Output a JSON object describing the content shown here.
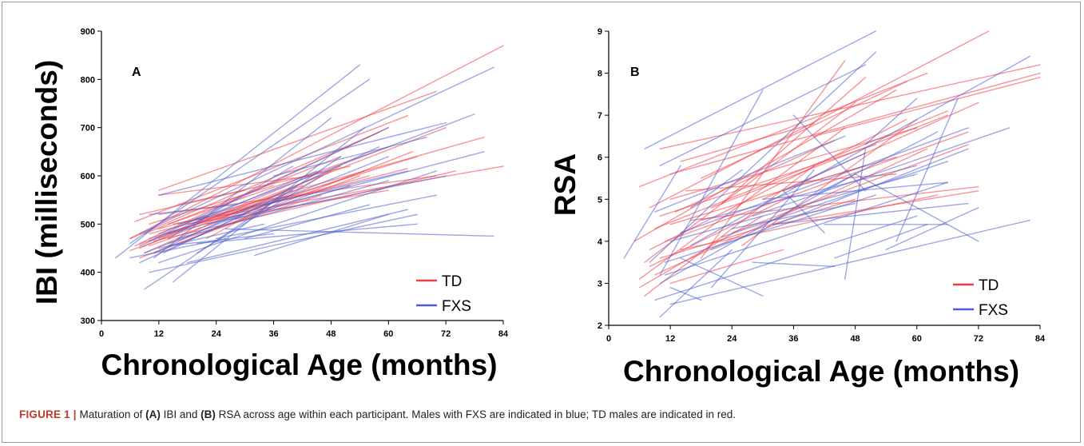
{
  "caption": {
    "label": "FIGURE 1 |",
    "t1": " Maturation of ",
    "a": "(A)",
    "t2": " IBI and ",
    "b": "(B)",
    "t3": " RSA across age within each participant. Males with FXS are indicated in blue; TD males are indicated in red."
  },
  "colors": {
    "TD": "#f03c46",
    "FXS": "#4d5fd0"
  },
  "chart_data": [
    {
      "type": "line",
      "panel_label": "A",
      "xlabel": "Chronological Age (months)",
      "ylabel": "IBI (milliseconds)",
      "xlim": [
        0,
        84
      ],
      "ylim": [
        300,
        900
      ],
      "xticks": [
        0,
        12,
        24,
        36,
        48,
        60,
        72,
        84
      ],
      "yticks": [
        300,
        400,
        500,
        600,
        700,
        800,
        900
      ],
      "legend": {
        "position": "bottom-right",
        "entries": [
          "TD",
          "FXS"
        ]
      },
      "series": [
        {
          "name": "TD",
          "segments": [
            [
              6,
              470,
              84,
              870
            ],
            [
              7,
              505,
              64,
              725
            ],
            [
              12,
              570,
              70,
              775
            ],
            [
              8,
              460,
              60,
              700
            ],
            [
              9,
              480,
              50,
              640
            ],
            [
              10,
              455,
              55,
              610
            ],
            [
              11,
              440,
              65,
              650
            ],
            [
              12,
              470,
              72,
              700
            ],
            [
              14,
              500,
              60,
              660
            ],
            [
              6,
              470,
              58,
              690
            ],
            [
              8,
              450,
              46,
              610
            ],
            [
              10,
              470,
              66,
              640
            ],
            [
              12,
              490,
              80,
              680
            ],
            [
              7,
              455,
              42,
              580
            ],
            [
              9,
              440,
              50,
              620
            ],
            [
              11,
              465,
              74,
              610
            ],
            [
              13,
              480,
              56,
              600
            ],
            [
              15,
              500,
              84,
              620
            ],
            [
              6,
              445,
              38,
              560
            ],
            [
              8,
              430,
              54,
              600
            ],
            [
              10,
              480,
              64,
              615
            ],
            [
              12,
              520,
              70,
              600
            ],
            [
              14,
              460,
              46,
              560
            ],
            [
              16,
              540,
              52,
              620
            ],
            [
              18,
              500,
              60,
              570
            ],
            [
              20,
              510,
              40,
              560
            ],
            [
              22,
              470,
              48,
              610
            ],
            [
              10,
              500,
              36,
              580
            ],
            [
              8,
              520,
              30,
              570
            ],
            [
              12,
              560,
              44,
              600
            ]
          ]
        },
        {
          "name": "FXS",
          "segments": [
            [
              3,
              430,
              54,
              830
            ],
            [
              6,
              460,
              56,
              800
            ],
            [
              12,
              560,
              72,
              710
            ],
            [
              8,
              480,
              82,
              825
            ],
            [
              10,
              465,
              60,
              700
            ],
            [
              9,
              440,
              60,
              640
            ],
            [
              14,
              470,
              40,
              620
            ],
            [
              11,
              440,
              58,
              660
            ],
            [
              8,
              455,
              45,
              610
            ],
            [
              12,
              420,
              70,
              610
            ],
            [
              10,
              400,
              66,
              520
            ],
            [
              9,
              365,
              50,
              640
            ],
            [
              12,
              480,
              78,
              728
            ],
            [
              14,
              480,
              80,
              650
            ],
            [
              16,
              470,
              60,
              590
            ],
            [
              13,
              440,
              40,
              570
            ],
            [
              18,
              420,
              64,
              530
            ],
            [
              20,
              460,
              66,
              500
            ],
            [
              15,
              380,
              55,
              700
            ],
            [
              11,
              430,
              48,
              720
            ],
            [
              22,
              500,
              72,
              600
            ],
            [
              24,
              470,
              70,
              560
            ],
            [
              26,
              490,
              82,
              475
            ],
            [
              30,
              470,
              56,
              540
            ],
            [
              32,
              435,
              60,
              520
            ],
            [
              20,
              440,
              46,
              600
            ],
            [
              12,
              450,
              34,
              500
            ],
            [
              10,
              520,
              28,
              540
            ],
            [
              8,
              420,
              30,
              520
            ],
            [
              14,
              455,
              36,
              480
            ],
            [
              16,
              500,
              42,
              560
            ],
            [
              28,
              510,
              52,
              580
            ],
            [
              34,
              540,
              64,
              610
            ],
            [
              36,
              600,
              68,
              680
            ],
            [
              6,
              430,
              26,
              470
            ]
          ]
        }
      ]
    },
    {
      "type": "line",
      "panel_label": "B",
      "xlabel": "Chronological Age (months)",
      "ylabel": "RSA",
      "xlim": [
        0,
        84
      ],
      "ylim": [
        2,
        9
      ],
      "xticks": [
        0,
        12,
        24,
        36,
        48,
        60,
        72,
        84
      ],
      "yticks": [
        2,
        3,
        4,
        5,
        6,
        7,
        8,
        9
      ],
      "legend": {
        "position": "bottom-right",
        "entries": [
          "TD",
          "FXS"
        ]
      },
      "series": [
        {
          "name": "TD",
          "segments": [
            [
              8,
              4.8,
              74,
              9.0
            ],
            [
              10,
              6.2,
              84,
              8.2
            ],
            [
              6,
              5.3,
              62,
              8.0
            ],
            [
              12,
              5.6,
              84,
              8.0
            ],
            [
              5,
              4.0,
              56,
              7.6
            ],
            [
              7,
              3.5,
              48,
              7.3
            ],
            [
              9,
              4.3,
              66,
              7.1
            ],
            [
              6,
              3.1,
              46,
              6.7
            ],
            [
              8,
              3.8,
              58,
              6.9
            ],
            [
              10,
              4.6,
              52,
              6.3
            ],
            [
              12,
              5.0,
              60,
              6.7
            ],
            [
              7,
              2.7,
              40,
              5.8
            ],
            [
              9,
              3.2,
              62,
              6.2
            ],
            [
              11,
              4.0,
              70,
              6.6
            ],
            [
              13,
              4.7,
              44,
              6.4
            ],
            [
              15,
              5.2,
              56,
              5.6
            ],
            [
              6,
              2.9,
              30,
              4.6
            ],
            [
              8,
              3.4,
              36,
              5.1
            ],
            [
              10,
              3.6,
              48,
              5.0
            ],
            [
              12,
              4.4,
              50,
              5.8
            ],
            [
              14,
              3.8,
              64,
              5.1
            ],
            [
              16,
              4.5,
              72,
              5.3
            ],
            [
              18,
              5.5,
              58,
              7.8
            ],
            [
              20,
              4.8,
              66,
              7.0
            ],
            [
              24,
              4.2,
              70,
              6.3
            ],
            [
              30,
              5.0,
              72,
              7.3
            ],
            [
              26,
              3.9,
              60,
              6.9
            ],
            [
              32,
              4.4,
              72,
              5.2
            ],
            [
              12,
              3.0,
              34,
              3.8
            ],
            [
              40,
              6.5,
              84,
              7.9
            ],
            [
              14,
              5.9,
              40,
              6.8
            ],
            [
              36,
              5.3,
              56,
              6.0
            ],
            [
              18,
              3.6,
              46,
              8.3
            ],
            [
              22,
              4.9,
              50,
              7.9
            ]
          ]
        },
        {
          "name": "FXS",
          "segments": [
            [
              7,
              6.2,
              52,
              9.0
            ],
            [
              10,
              5.8,
              50,
              8.2
            ],
            [
              3,
              3.6,
              14,
              5.8
            ],
            [
              8,
              3.5,
              52,
              8.5
            ],
            [
              10,
              3.2,
              30,
              7.6
            ],
            [
              9,
              4.7,
              46,
              6.5
            ],
            [
              12,
              4.0,
              60,
              5.6
            ],
            [
              11,
              3.5,
              52,
              5.1
            ],
            [
              10,
              3.0,
              48,
              5.6
            ],
            [
              9,
              2.6,
              60,
              4.6
            ],
            [
              12,
              2.5,
              82,
              4.5
            ],
            [
              11,
              3.2,
              66,
              5.4
            ],
            [
              14,
              4.2,
              70,
              6.7
            ],
            [
              16,
              3.9,
              82,
              8.4
            ],
            [
              18,
              4.5,
              60,
              5.8
            ],
            [
              20,
              3.8,
              70,
              6.2
            ],
            [
              22,
              4.1,
              66,
              5.9
            ],
            [
              24,
              4.3,
              48,
              4.9
            ],
            [
              28,
              4.6,
              78,
              6.7
            ],
            [
              30,
              5.0,
              66,
              5.4
            ],
            [
              32,
              4.4,
              70,
              4.9
            ],
            [
              34,
              5.2,
              50,
              6.1
            ],
            [
              36,
              7.0,
              50,
              5.2
            ],
            [
              40,
              5.1,
              64,
              6.6
            ],
            [
              42,
              4.4,
              66,
              4.4
            ],
            [
              46,
              3.1,
              50,
              6.2
            ],
            [
              48,
              5.6,
              72,
              4.0
            ],
            [
              50,
              6.3,
              60,
              7.4
            ],
            [
              54,
              3.8,
              72,
              4.8
            ],
            [
              56,
              4.0,
              68,
              7.4
            ],
            [
              12,
              2.9,
              18,
              2.6
            ],
            [
              14,
              3.6,
              30,
              2.7
            ],
            [
              10,
              2.2,
              24,
              3.8
            ],
            [
              28,
              3.5,
              44,
              3.4
            ],
            [
              34,
              5.2,
              42,
              4.2
            ],
            [
              20,
              2.9,
              40,
              5.7
            ],
            [
              44,
              3.6,
              62,
              4.4
            ],
            [
              16,
              4.8,
              26,
              5.7
            ]
          ]
        }
      ]
    }
  ]
}
